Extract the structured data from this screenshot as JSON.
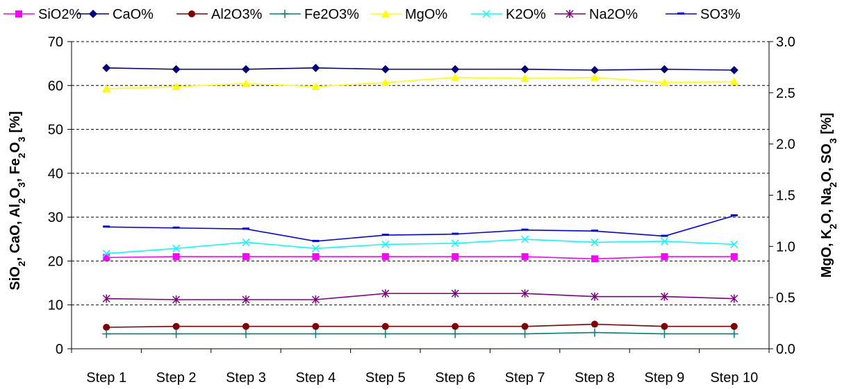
{
  "chart_data": {
    "type": "line",
    "categories": [
      "Step 1",
      "Step 2",
      "Step 3",
      "Step 4",
      "Step 5",
      "Step 6",
      "Step 7",
      "Step 8",
      "Step 9",
      "Step 10"
    ],
    "y_left": {
      "label_parts": [
        {
          "t": "SiO"
        },
        {
          "t": "2",
          "sub": true
        },
        {
          "t": ", CaO, Al"
        },
        {
          "t": "2",
          "sub": true
        },
        {
          "t": "O"
        },
        {
          "t": "3",
          "sub": true
        },
        {
          "t": ", Fe"
        },
        {
          "t": "2",
          "sub": true
        },
        {
          "t": "O"
        },
        {
          "t": "3",
          "sub": true
        },
        {
          "t": " [%]"
        }
      ],
      "range": [
        0,
        70
      ],
      "ticks": [
        "0",
        "10",
        "20",
        "30",
        "40",
        "50",
        "60",
        "70"
      ]
    },
    "y_right": {
      "label_parts": [
        {
          "t": "MgO, K"
        },
        {
          "t": "2",
          "sub": true
        },
        {
          "t": "O, Na"
        },
        {
          "t": "2",
          "sub": true
        },
        {
          "t": "O, SO"
        },
        {
          "t": "3",
          "sub": true
        },
        {
          "t": " [%]"
        }
      ],
      "range": [
        0,
        3
      ],
      "ticks": [
        "0.0",
        "0.5",
        "1.0",
        "1.5",
        "2.0",
        "2.5",
        "3.0"
      ]
    },
    "grid": "horizontal dashed",
    "legend_position": "top",
    "series": [
      {
        "name": "SiO2%",
        "axis": "left",
        "color": "#ff00ff",
        "marker": "square",
        "values": [
          20.8,
          21.0,
          21.0,
          21.0,
          21.0,
          21.0,
          21.0,
          20.5,
          21.0,
          21.0
        ]
      },
      {
        "name": "CaO%",
        "axis": "left",
        "color": "#000080",
        "marker": "diamond",
        "values": [
          64.0,
          63.7,
          63.7,
          64.0,
          63.7,
          63.7,
          63.7,
          63.5,
          63.7,
          63.5
        ]
      },
      {
        "name": "Al2O3%",
        "axis": "left",
        "color": "#800000",
        "marker": "circle",
        "values": [
          4.9,
          5.1,
          5.1,
          5.1,
          5.1,
          5.1,
          5.1,
          5.6,
          5.1,
          5.1
        ]
      },
      {
        "name": "Fe2O3%",
        "axis": "left",
        "color": "#008080",
        "marker": "plus",
        "values": [
          3.4,
          3.4,
          3.4,
          3.4,
          3.4,
          3.4,
          3.4,
          3.7,
          3.4,
          3.4
        ]
      },
      {
        "name": "MgO%",
        "axis": "right",
        "color": "#ffff00",
        "marker": "triangle",
        "values": [
          2.54,
          2.56,
          2.59,
          2.56,
          2.6,
          2.65,
          2.64,
          2.65,
          2.6,
          2.61
        ]
      },
      {
        "name": "K2O%",
        "axis": "right",
        "color": "#00ffff",
        "marker": "x",
        "values": [
          0.93,
          0.98,
          1.04,
          0.98,
          1.02,
          1.03,
          1.07,
          1.04,
          1.05,
          1.02
        ]
      },
      {
        "name": "Na2O%",
        "axis": "right",
        "color": "#800080",
        "marker": "star",
        "values": [
          0.49,
          0.48,
          0.48,
          0.48,
          0.54,
          0.54,
          0.54,
          0.51,
          0.51,
          0.49
        ]
      },
      {
        "name": "SO3%",
        "axis": "right",
        "color": "#0000ff",
        "marker": "dash",
        "values": [
          1.19,
          1.18,
          1.17,
          1.05,
          1.11,
          1.12,
          1.16,
          1.15,
          1.1,
          1.3
        ]
      }
    ]
  }
}
